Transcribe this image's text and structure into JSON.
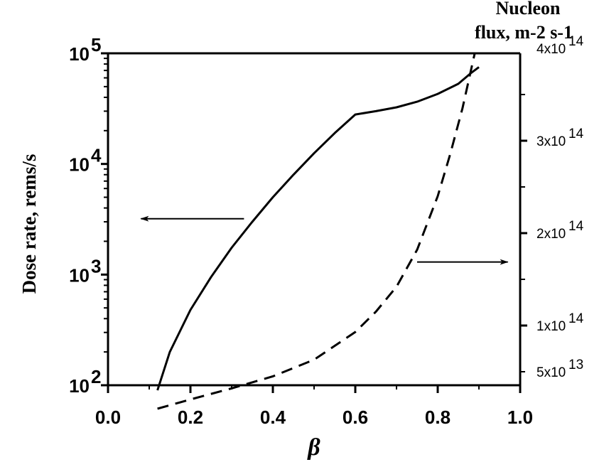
{
  "chart_data": {
    "type": "line",
    "xlabel": "β",
    "ylabel_left": "Dose rate, rems/s",
    "ylabel_right_line1": "Nucleon",
    "ylabel_right_line2": "flux, m-2 s-1",
    "xlim": [
      0.0,
      1.0
    ],
    "ylim_left": [
      100,
      100000
    ],
    "yscale_left": "log",
    "ylim_right": [
      0,
      400000000000000
    ],
    "x_ticks": [
      {
        "value": 0.0,
        "label": "0.0"
      },
      {
        "value": 0.2,
        "label": "0.2"
      },
      {
        "value": 0.4,
        "label": "0.4"
      },
      {
        "value": 0.6,
        "label": "0.6"
      },
      {
        "value": 0.8,
        "label": "0.8"
      },
      {
        "value": 1.0,
        "label": "1.0"
      }
    ],
    "y_left_ticks": [
      {
        "value": 100,
        "base": "10",
        "exp": "2"
      },
      {
        "value": 1000,
        "base": "10",
        "exp": "3"
      },
      {
        "value": 10000,
        "base": "10",
        "exp": "4"
      },
      {
        "value": 100000,
        "base": "10",
        "exp": "5"
      }
    ],
    "y_right_ticks": [
      {
        "value": 50000000000000,
        "mant": "5x10",
        "exp": "13"
      },
      {
        "value": 100000000000000,
        "mant": "1x10",
        "exp": "14"
      },
      {
        "value": 200000000000000,
        "mant": "2x10",
        "exp": "14"
      },
      {
        "value": 300000000000000,
        "mant": "3x10",
        "exp": "14"
      },
      {
        "value": 400000000000000,
        "mant": "4x10",
        "exp": "14"
      }
    ],
    "series": [
      {
        "axis": "left",
        "style": "solid",
        "x": [
          0.12,
          0.15,
          0.2,
          0.25,
          0.3,
          0.35,
          0.4,
          0.45,
          0.5,
          0.55,
          0.6,
          0.65,
          0.7,
          0.75,
          0.8,
          0.85,
          0.88,
          0.9
        ],
        "y": [
          90,
          200,
          480,
          950,
          1750,
          3000,
          5000,
          8000,
          12500,
          19000,
          28000,
          30000,
          32500,
          36500,
          43000,
          53000,
          66000,
          75000
        ]
      },
      {
        "axis": "right",
        "style": "dashed",
        "x": [
          0.12,
          0.2,
          0.3,
          0.4,
          0.5,
          0.6,
          0.65,
          0.7,
          0.75,
          0.8,
          0.83,
          0.86,
          0.88,
          0.89
        ],
        "y": [
          10000000000000,
          20000000000000,
          32000000000000,
          45000000000000,
          63000000000000,
          93000000000000,
          115000000000000,
          142000000000000,
          182000000000000,
          240000000000000,
          285000000000000,
          335000000000000,
          375000000000000,
          395000000000000
        ]
      }
    ],
    "annotations": [
      {
        "type": "arrow",
        "direction": "left",
        "points_to": "left-axis",
        "x_from": 0.33,
        "x_to": 0.08,
        "y_left": 3200
      },
      {
        "type": "arrow",
        "direction": "right",
        "points_to": "right-axis",
        "x_from": 0.75,
        "x_to": 0.97,
        "y_left": 1300
      }
    ],
    "grid": false,
    "legend": "none"
  }
}
